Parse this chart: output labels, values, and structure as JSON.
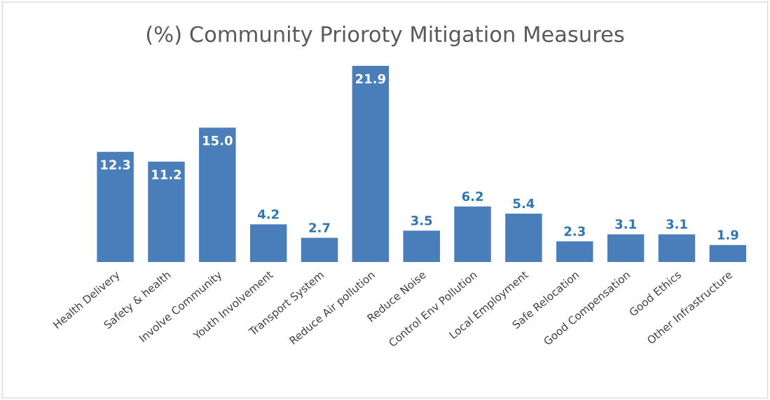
{
  "chart_data": {
    "type": "bar",
    "title": "(%) Community Prioroty Mitigation Measures",
    "categories": [
      "Health Delivery",
      "Safety & health",
      "Involve Community",
      "Youth Involvement",
      "Transport System",
      "Reduce Air pollution",
      "Reduce Noise",
      "Control Env Pollution",
      "Local Employment",
      "Safe Relocation",
      "Good Compensation",
      "Good Ethics",
      "Other Infrastructure"
    ],
    "values": [
      12.3,
      11.2,
      15.0,
      4.2,
      2.7,
      21.9,
      3.5,
      6.2,
      5.4,
      2.3,
      3.1,
      3.1,
      1.9
    ],
    "value_labels": [
      "12.3",
      "11.2",
      "15.0",
      "4.2",
      "2.7",
      "21.9",
      "3.5",
      "6.2",
      "5.4",
      "2.3",
      "3.1",
      "3.1",
      "1.9"
    ],
    "color": "#4a7ebb",
    "grid": false
  }
}
